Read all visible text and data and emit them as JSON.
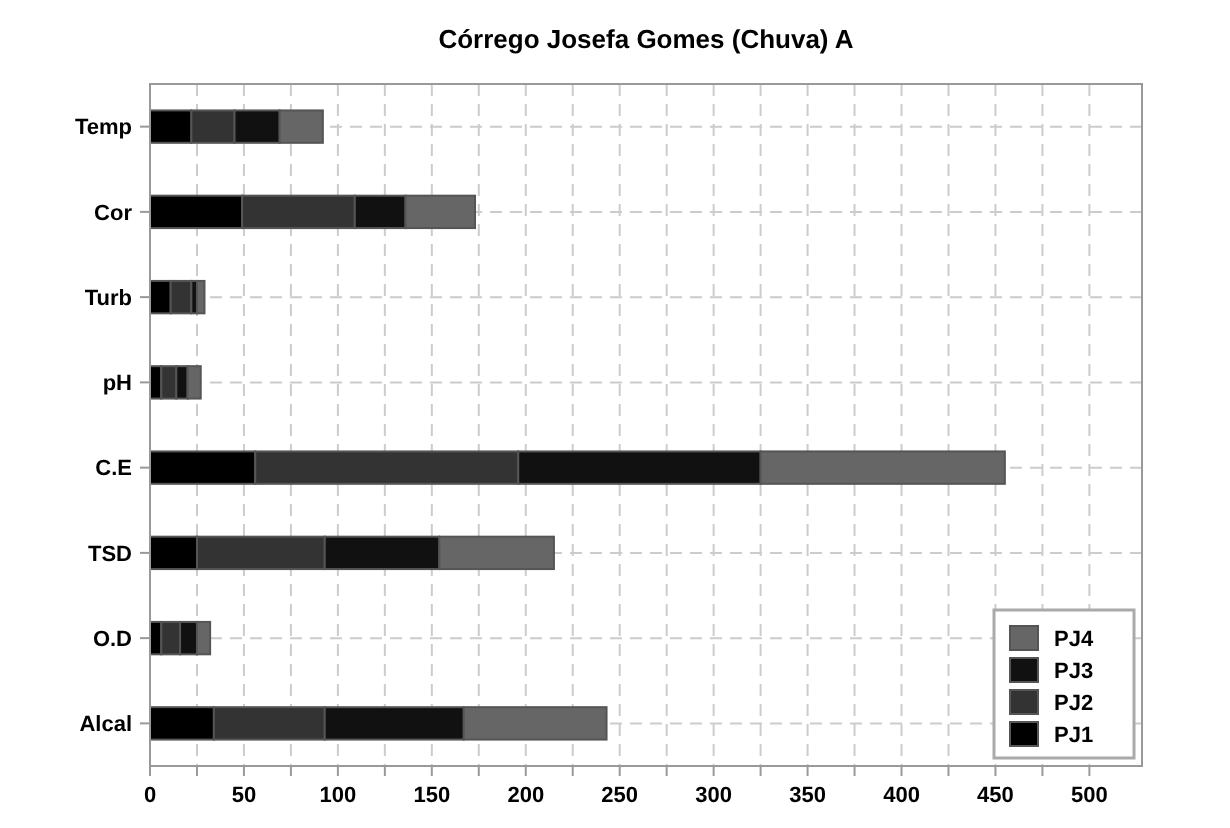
{
  "chart_data": {
    "type": "bar",
    "title": "Córrego Josefa Gomes (Chuva) A",
    "orientation": "horizontal",
    "stacked": true,
    "categories": [
      "Temp",
      "Cor",
      "Turb",
      "pH",
      "C.E",
      "TSD",
      "O.D",
      "Alcal"
    ],
    "series": [
      {
        "name": "PJ1",
        "color": "#000000",
        "values": [
          22,
          49,
          11,
          6,
          56,
          25,
          6,
          34
        ]
      },
      {
        "name": "PJ2",
        "color": "#333333",
        "values": [
          23,
          60,
          11,
          8,
          140,
          68,
          10,
          59
        ]
      },
      {
        "name": "PJ3",
        "color": "#111111",
        "values": [
          24,
          27,
          3,
          6,
          129,
          61,
          9,
          74
        ]
      },
      {
        "name": "PJ4",
        "color": "#666666",
        "values": [
          23,
          37,
          4,
          7,
          130,
          61,
          7,
          76
        ]
      }
    ],
    "xlim": [
      0,
      528
    ],
    "xticks": [
      0,
      {
        "value": 25,
        "label": null
      },
      50,
      {
        "value": 75,
        "label": null
      },
      100,
      {
        "value": 125,
        "label": null
      },
      150,
      {
        "value": 175,
        "label": null
      },
      200,
      {
        "value": 225,
        "label": null
      },
      250,
      {
        "value": 275,
        "label": null
      },
      300,
      {
        "value": 325,
        "label": null
      },
      350,
      {
        "value": 375,
        "label": null
      },
      400,
      {
        "value": 425,
        "label": null
      },
      450,
      {
        "value": 475,
        "label": null
      },
      500
    ],
    "grid": true,
    "legend": "bottom right"
  }
}
